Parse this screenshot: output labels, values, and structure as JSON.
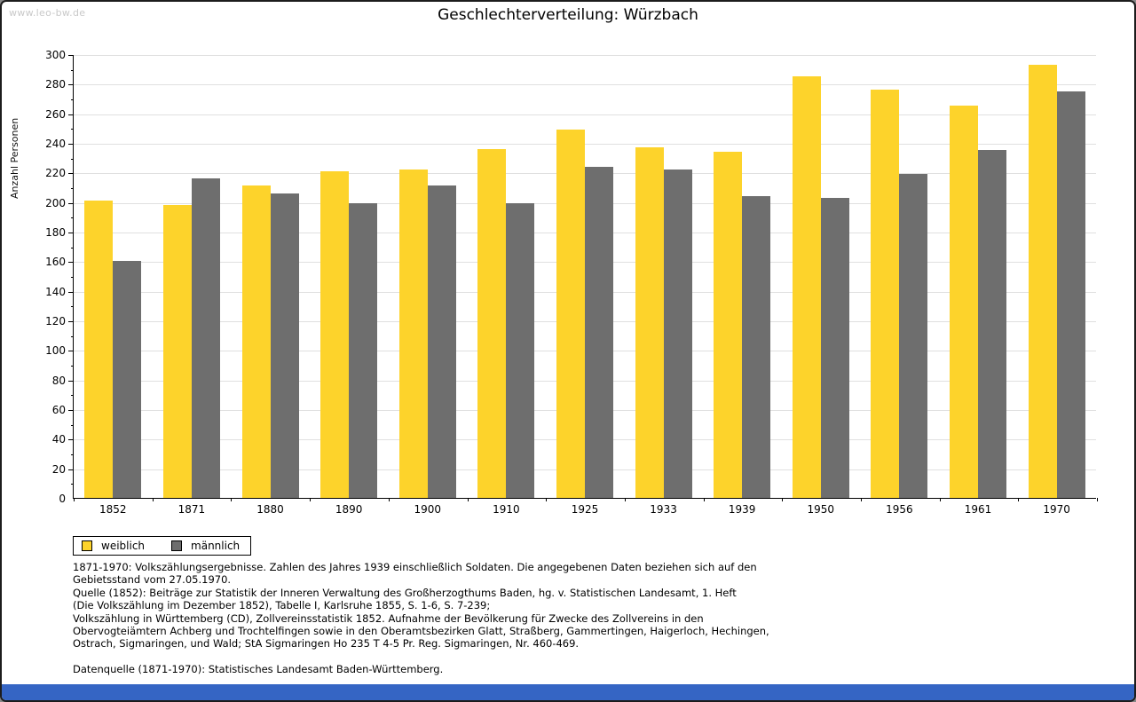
{
  "page": {
    "watermark": "www.leo-bw.de",
    "title": "Geschlechterverteilung: Würzbach"
  },
  "chart_data": {
    "type": "bar",
    "title": "Geschlechterverteilung: Würzbach",
    "ylabel": "Anzahl Personen",
    "xlabel": "",
    "ylim": [
      0,
      300
    ],
    "ytick_step": 20,
    "ytick_minor_step": 10,
    "grid": true,
    "legend_position": "below-left",
    "categories": [
      "1852",
      "1871",
      "1880",
      "1890",
      "1900",
      "1910",
      "1925",
      "1933",
      "1939",
      "1950",
      "1956",
      "1961",
      "1970"
    ],
    "series": [
      {
        "name": "weiblich",
        "color": "#FDD32B",
        "values": [
          201,
          198,
          211,
          221,
          222,
          236,
          249,
          237,
          234,
          285,
          276,
          265,
          293
        ]
      },
      {
        "name": "männlich",
        "color": "#6E6E6E",
        "values": [
          160,
          216,
          206,
          199,
          211,
          199,
          224,
          222,
          204,
          203,
          219,
          235,
          275
        ]
      }
    ]
  },
  "footnotes": {
    "notes": [
      "1871-1970: Volkszählungsergebnisse. Zahlen des Jahres 1939 einschließlich Soldaten. Die angegebenen Daten beziehen sich auf den",
      "Gebietsstand vom 27.05.1970.",
      "Quelle (1852): Beiträge zur Statistik der Inneren Verwaltung des Großherzogthums Baden, hg. v. Statistischen Landesamt, 1. Heft",
      "(Die Volkszählung im Dezember 1852), Tabelle I, Karlsruhe 1855, S. 1-6, S. 7-239;",
      "Volkszählung in Württemberg (CD), Zollvereinsstatistik 1852. Aufnahme der Bevölkerung für Zwecke des Zollvereins in den",
      "Obervogteiämtern Achberg und Trochtelfingen sowie in den Oberamtsbezirken Glatt, Straßberg, Gammertingen, Haigerloch, Hechingen,",
      "Ostrach, Sigmaringen, und Wald; StA Sigmaringen Ho 235 T 4-5 Pr. Reg. Sigmaringen, Nr. 460-469."
    ],
    "datasource": "Datenquelle (1871-1970): Statistisches Landesamt Baden-Württemberg."
  },
  "colors": {
    "female": "#FDD32B",
    "male": "#6E6E6E",
    "grid": "#E0E0E0",
    "axis": "#000000",
    "watermark": "#C9C9C9",
    "bottom_bar": "#3565C4"
  }
}
